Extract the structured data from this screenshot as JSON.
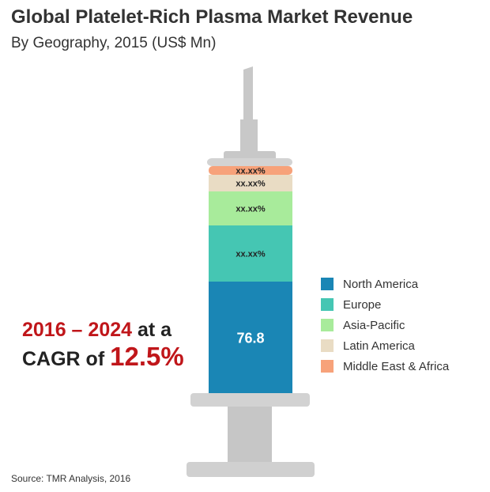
{
  "header": {
    "title": "Global Platelet-Rich Plasma Market Revenue",
    "subtitle": "By Geography, 2015 (US$ Mn)"
  },
  "cagr": {
    "years": "2016 – 2024",
    "at_a": "at a",
    "cagr_of": "CAGR of",
    "rate": "12.5%"
  },
  "source": "Source: TMR Analysis, 2016",
  "chart_data": {
    "type": "bar",
    "stacked": true,
    "title": "Global Platelet-Rich Plasma Market Revenue",
    "subtitle": "By Geography, 2015 (US$ Mn)",
    "categories": [
      "2015"
    ],
    "series": [
      {
        "name": "North America",
        "label": "76.8",
        "color": "#1a86b5"
      },
      {
        "name": "Europe",
        "label": "xx.xx%",
        "color": "#45c6b3"
      },
      {
        "name": "Asia-Pacific",
        "label": "xx.xx%",
        "color": "#a8eb9b"
      },
      {
        "name": "Latin America",
        "label": "xx.xx%",
        "color": "#e9dcc4"
      },
      {
        "name": "Middle East & Africa",
        "label": "xx.xx%",
        "color": "#f7a27a"
      }
    ],
    "legend_position": "right"
  }
}
